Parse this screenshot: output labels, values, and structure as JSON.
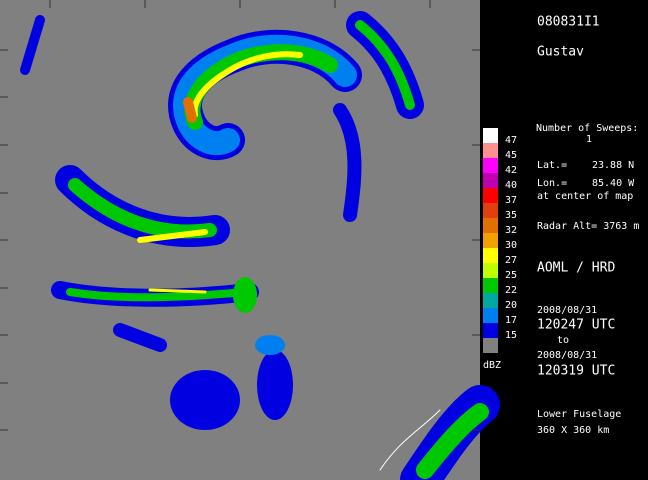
{
  "header": {
    "flight_id": "080831I1",
    "storm": "Gustav"
  },
  "info": {
    "sweeps_label": "Number of Sweeps:",
    "sweeps": "1",
    "lat_label": "Lat.=",
    "lat": "23.88 N",
    "lon_label": "Lon.=",
    "lon": "85.40 W",
    "center_note": "at center of map",
    "radar_alt": "Radar Alt= 3763 m",
    "org": "AOML / HRD",
    "start_date": "2008/08/31",
    "start_time": "120247 UTC",
    "to": "to",
    "end_date": "2008/08/31",
    "end_time": "120319 UTC",
    "antenna": "Lower Fuselage",
    "extent": "360 X 360 km"
  },
  "scale": {
    "unit": "dBZ",
    "levels": [
      {
        "value": 47,
        "color": "#ffffff"
      },
      {
        "value": 45,
        "color": "#ff9090"
      },
      {
        "value": 42,
        "color": "#ff00ff"
      },
      {
        "value": 40,
        "color": "#c000b0"
      },
      {
        "value": 37,
        "color": "#ff0000"
      },
      {
        "value": 35,
        "color": "#e04010"
      },
      {
        "value": 32,
        "color": "#e07000"
      },
      {
        "value": 30,
        "color": "#f0a000"
      },
      {
        "value": 27,
        "color": "#ffff00"
      },
      {
        "value": 25,
        "color": "#c0ff00"
      },
      {
        "value": 22,
        "color": "#00c800"
      },
      {
        "value": 20,
        "color": "#00a8a0"
      },
      {
        "value": 17,
        "color": "#0080f0"
      },
      {
        "value": 15,
        "color": "#0000e0"
      }
    ]
  }
}
